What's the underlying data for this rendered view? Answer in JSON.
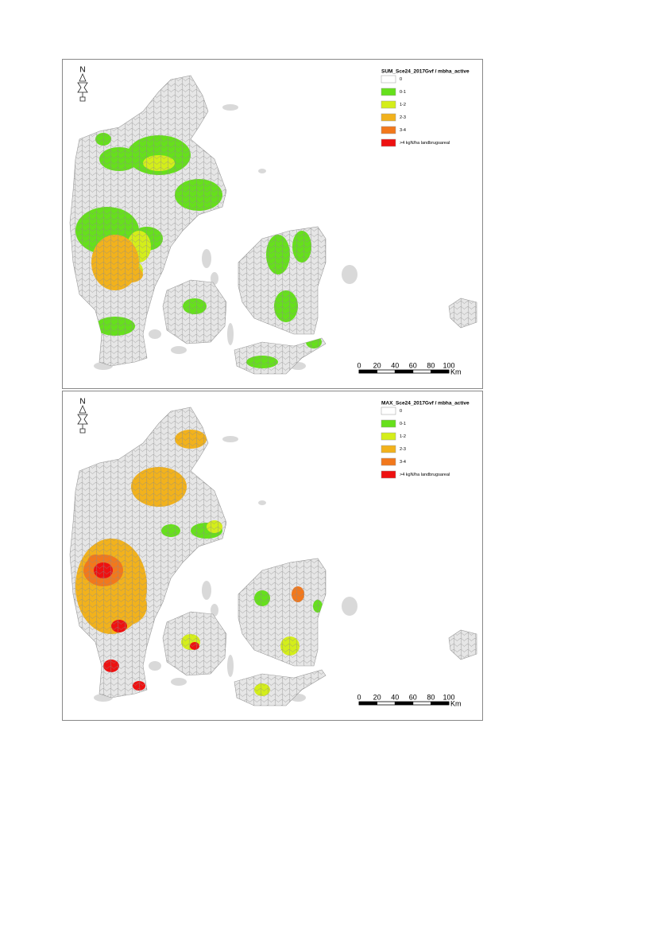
{
  "maps": [
    {
      "north": "N",
      "legend": {
        "title": "SUM_Sce24_2017Gvf / mbha_active",
        "items": [
          {
            "label": "0",
            "color": "#ffffff"
          },
          {
            "label": "0-1",
            "color": "#66e01c"
          },
          {
            "label": "1-2",
            "color": "#d4ee1a"
          },
          {
            "label": "2-3",
            "color": "#f2b21c"
          },
          {
            "label": "3-4",
            "color": "#f2781c"
          },
          {
            "label": ">4 kgN/ha landbrugsareal",
            "color": "#ee1111"
          }
        ]
      },
      "scale": {
        "ticks": [
          0,
          20,
          40,
          60,
          80,
          100
        ],
        "unit": "Km"
      }
    },
    {
      "north": "N",
      "legend": {
        "title": "MAX_Sce24_2017Gvf / mbha_active",
        "items": [
          {
            "label": "0",
            "color": "#ffffff"
          },
          {
            "label": "0-1",
            "color": "#66e01c"
          },
          {
            "label": "1-2",
            "color": "#d4ee1a"
          },
          {
            "label": "2-3",
            "color": "#f2b21c"
          },
          {
            "label": "3-4",
            "color": "#f2781c"
          },
          {
            "label": ">4 kgN/ha landbrugsareal",
            "color": "#ee1111"
          }
        ]
      },
      "scale": {
        "ticks": [
          0,
          20,
          40,
          60,
          80,
          100
        ],
        "unit": "Km"
      }
    }
  ]
}
